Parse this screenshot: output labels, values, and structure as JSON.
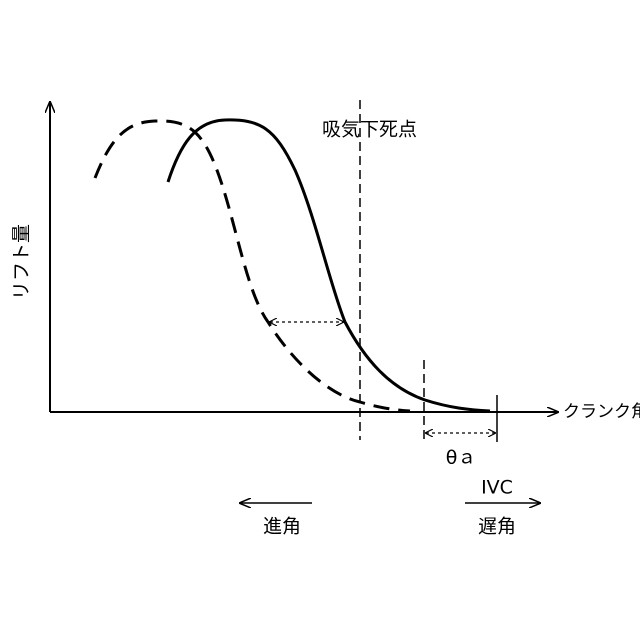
{
  "labels": {
    "bdc": "吸気下死点",
    "y_axis": "リフト量",
    "x_axis": "クランク角",
    "theta": "θａ",
    "ivc": "IVC",
    "advance": "進角",
    "retard": "遅角"
  }
}
